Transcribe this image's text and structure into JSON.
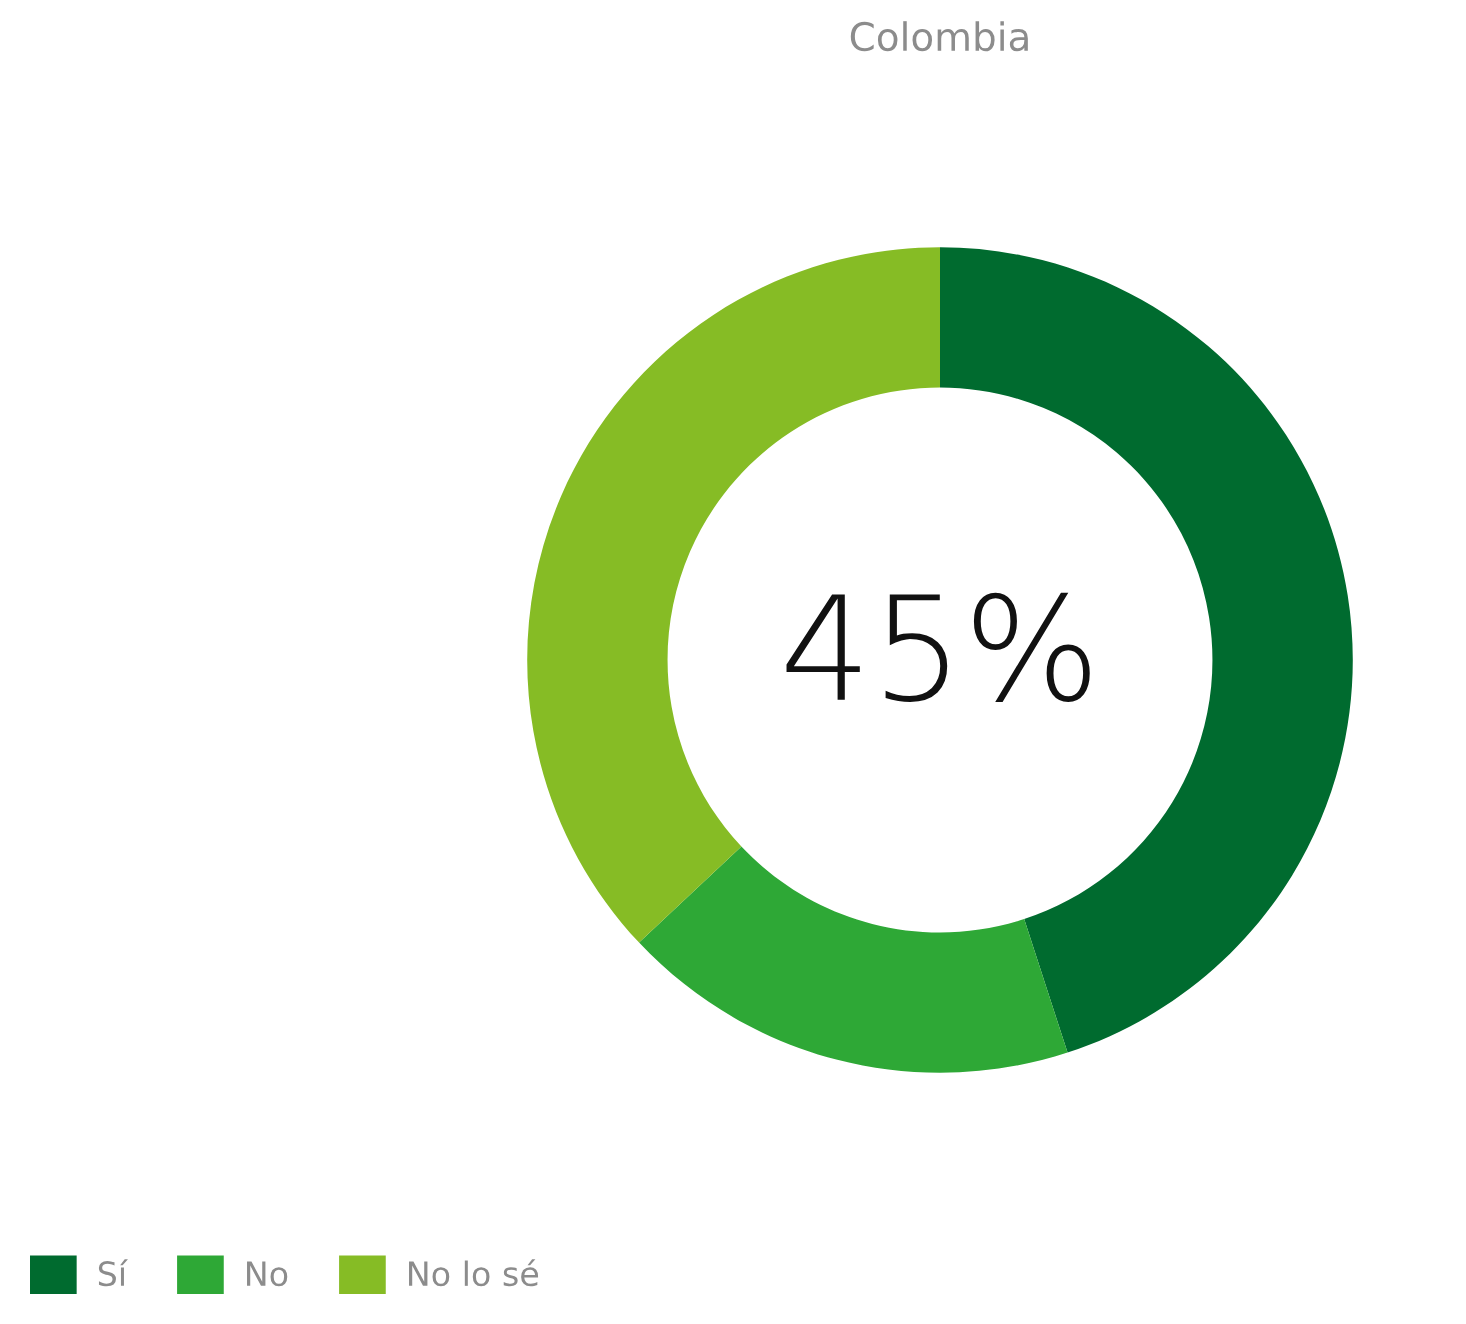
{
  "chart_data": {
    "type": "donut",
    "title": "Colombia",
    "categories": [
      "Sí",
      "No",
      "No lo sé"
    ],
    "values": [
      45,
      18,
      37
    ],
    "colors": [
      "#006b2f",
      "#2ea836",
      "#86bc25"
    ],
    "annotations": [
      "45%"
    ],
    "legend": "bottom left"
  }
}
